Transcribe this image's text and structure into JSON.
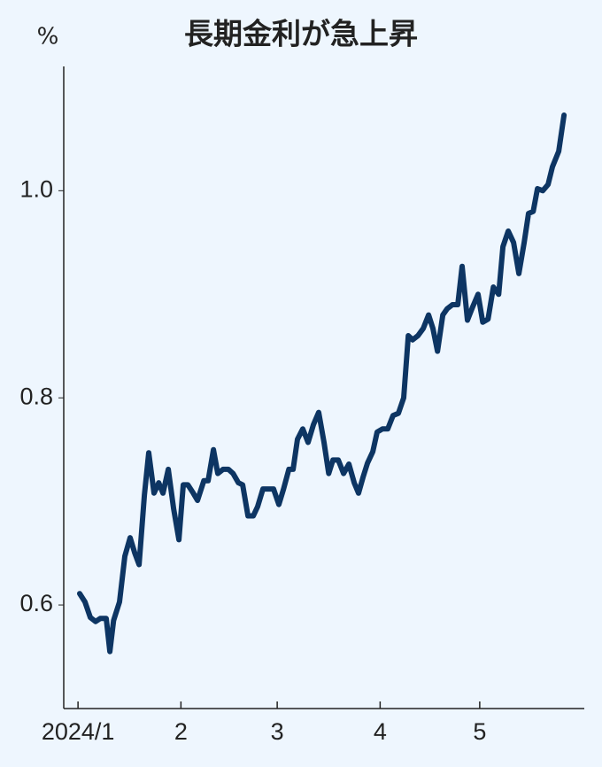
{
  "chart_data": {
    "type": "line",
    "title": "長期金利が急上昇",
    "y_unit": "%",
    "color": "#0d3563",
    "xlim": [
      -4.3,
      152.5
    ],
    "xticks": [
      {
        "value": 0,
        "label": "2024/1"
      },
      {
        "value": 31,
        "label": "2"
      },
      {
        "value": 60,
        "label": "3"
      },
      {
        "value": 91,
        "label": "4"
      },
      {
        "value": 121,
        "label": "5"
      }
    ],
    "ylim": [
      0.5,
      1.12
    ],
    "yticks": [
      0.6,
      0.8,
      {
        "value": 1,
        "label": "1.0"
      }
    ],
    "x": [
      0.5,
      2.1,
      3.7,
      5.3,
      6.7,
      8.5,
      9.6,
      10.7,
      12.5,
      14.1,
      15.7,
      17.1,
      18.4,
      20.0,
      21.3,
      22.9,
      24.3,
      25.6,
      27.2,
      28.8,
      30.4,
      31.7,
      33.1,
      34.7,
      36.0,
      37.9,
      39.2,
      40.8,
      42.1,
      43.7,
      45.3,
      46.7,
      48.3,
      49.6,
      51.2,
      52.8,
      54.1,
      55.7,
      57.3,
      58.9,
      60.5,
      61.9,
      63.5,
      64.8,
      66.1,
      67.7,
      69.3,
      70.9,
      72.5,
      74.1,
      75.5,
      76.8,
      78.4,
      80.0,
      81.6,
      83.2,
      84.5,
      85.9,
      87.2,
      88.8,
      90.1,
      91.7,
      93.3,
      94.9,
      96.5,
      98.1,
      99.5,
      100.8,
      102.4,
      104.0,
      105.6,
      106.9,
      108.3,
      109.9,
      111.2,
      112.8,
      114.4,
      115.7,
      117.3,
      118.9,
      120.5,
      121.9,
      123.5,
      125.1,
      126.7,
      128.0,
      129.6,
      131.2,
      132.8,
      134.4,
      135.7,
      137.1,
      138.4,
      140.0,
      141.6,
      142.9,
      144.8,
      146.4
    ],
    "values": [
      0.611,
      0.603,
      0.588,
      0.584,
      0.587,
      0.587,
      0.555,
      0.585,
      0.603,
      0.647,
      0.665,
      0.65,
      0.639,
      0.706,
      0.747,
      0.708,
      0.718,
      0.708,
      0.731,
      0.693,
      0.663,
      0.716,
      0.716,
      0.708,
      0.701,
      0.72,
      0.72,
      0.75,
      0.727,
      0.731,
      0.731,
      0.727,
      0.718,
      0.716,
      0.686,
      0.686,
      0.695,
      0.712,
      0.712,
      0.712,
      0.697,
      0.712,
      0.731,
      0.731,
      0.76,
      0.77,
      0.757,
      0.774,
      0.786,
      0.757,
      0.727,
      0.74,
      0.74,
      0.727,
      0.736,
      0.718,
      0.708,
      0.724,
      0.737,
      0.748,
      0.767,
      0.77,
      0.77,
      0.783,
      0.785,
      0.8,
      0.86,
      0.856,
      0.86,
      0.867,
      0.88,
      0.867,
      0.845,
      0.88,
      0.886,
      0.89,
      0.89,
      0.927,
      0.875,
      0.888,
      0.9,
      0.873,
      0.876,
      0.907,
      0.9,
      0.946,
      0.961,
      0.95,
      0.92,
      0.95,
      0.978,
      0.98,
      1.002,
      1.0,
      1.006,
      1.023,
      1.038,
      1.073
    ]
  }
}
